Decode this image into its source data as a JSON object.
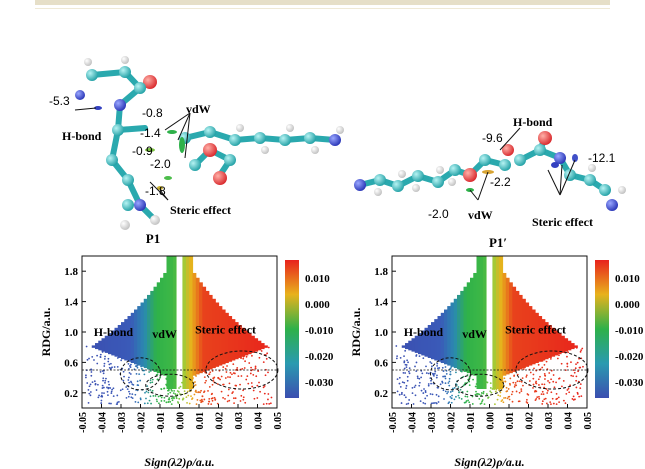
{
  "panels": [
    {
      "mol_label": "P1",
      "labels": {
        "hbond": "H-bond",
        "vdw": "vdW",
        "steric": "Steric effect",
        "e1": "-5.3",
        "e2": "-0.8",
        "e3": "-1.4",
        "e4": "-0.9",
        "e5": "-2.0",
        "e6": "-1.8"
      }
    },
    {
      "mol_label": "P1′",
      "labels": {
        "hbond": "H-bond",
        "vdw": "vdW",
        "steric": "Steric  effect",
        "e1": "-9.6",
        "e2": "-2.2",
        "e3": "-2.0",
        "e4": "-12.1"
      }
    }
  ],
  "chart_data": [
    {
      "type": "scatter",
      "xlabel": "Sign(λ2)ρ/a.u.",
      "ylabel": "RDG/a.u.",
      "xlim": [
        -0.05,
        0.05
      ],
      "ylim": [
        0,
        2.0
      ],
      "xticks": [
        "-0.05",
        "-0.04",
        "-0.03",
        "-0.02",
        "-0.01",
        "0.00",
        "0.01",
        "0.02",
        "0.03",
        "0.04",
        "0.05"
      ],
      "yticks": [
        "0.2",
        "0.6",
        "1.0",
        "1.4",
        "1.8"
      ],
      "colorbar": {
        "ticks": [
          "0.010",
          "0.000",
          "-0.010",
          "-0.020",
          "-0.030"
        ],
        "colors": [
          "#e8221c",
          "#2eb14a",
          "#3b4eb0"
        ]
      },
      "annotations": [
        "H-bond",
        "vdW",
        "Steric effect"
      ],
      "reference_line_y": 0.5
    },
    {
      "type": "scatter",
      "xlabel": "Sign(λ2)ρ/a.u.",
      "ylabel": "RDG/a.u.",
      "xlim": [
        -0.05,
        0.05
      ],
      "ylim": [
        0,
        2.0
      ],
      "xticks": [
        "-0.05",
        "-0.04",
        "-0.03",
        "-0.02",
        "-0.01",
        "0.00",
        "0.01",
        "0.02",
        "0.03",
        "0.04",
        "0.05"
      ],
      "yticks": [
        "0.2",
        "0.6",
        "1.0",
        "1.4",
        "1.8"
      ],
      "colorbar": {
        "ticks": [
          "0.010",
          "0.000",
          "-0.010",
          "-0.020",
          "-0.030"
        ],
        "colors": [
          "#e8221c",
          "#2eb14a",
          "#3b4eb0"
        ]
      },
      "annotations": [
        "H-bond",
        "vdW",
        "Steric effect"
      ],
      "reference_line_y": 0.5
    }
  ]
}
